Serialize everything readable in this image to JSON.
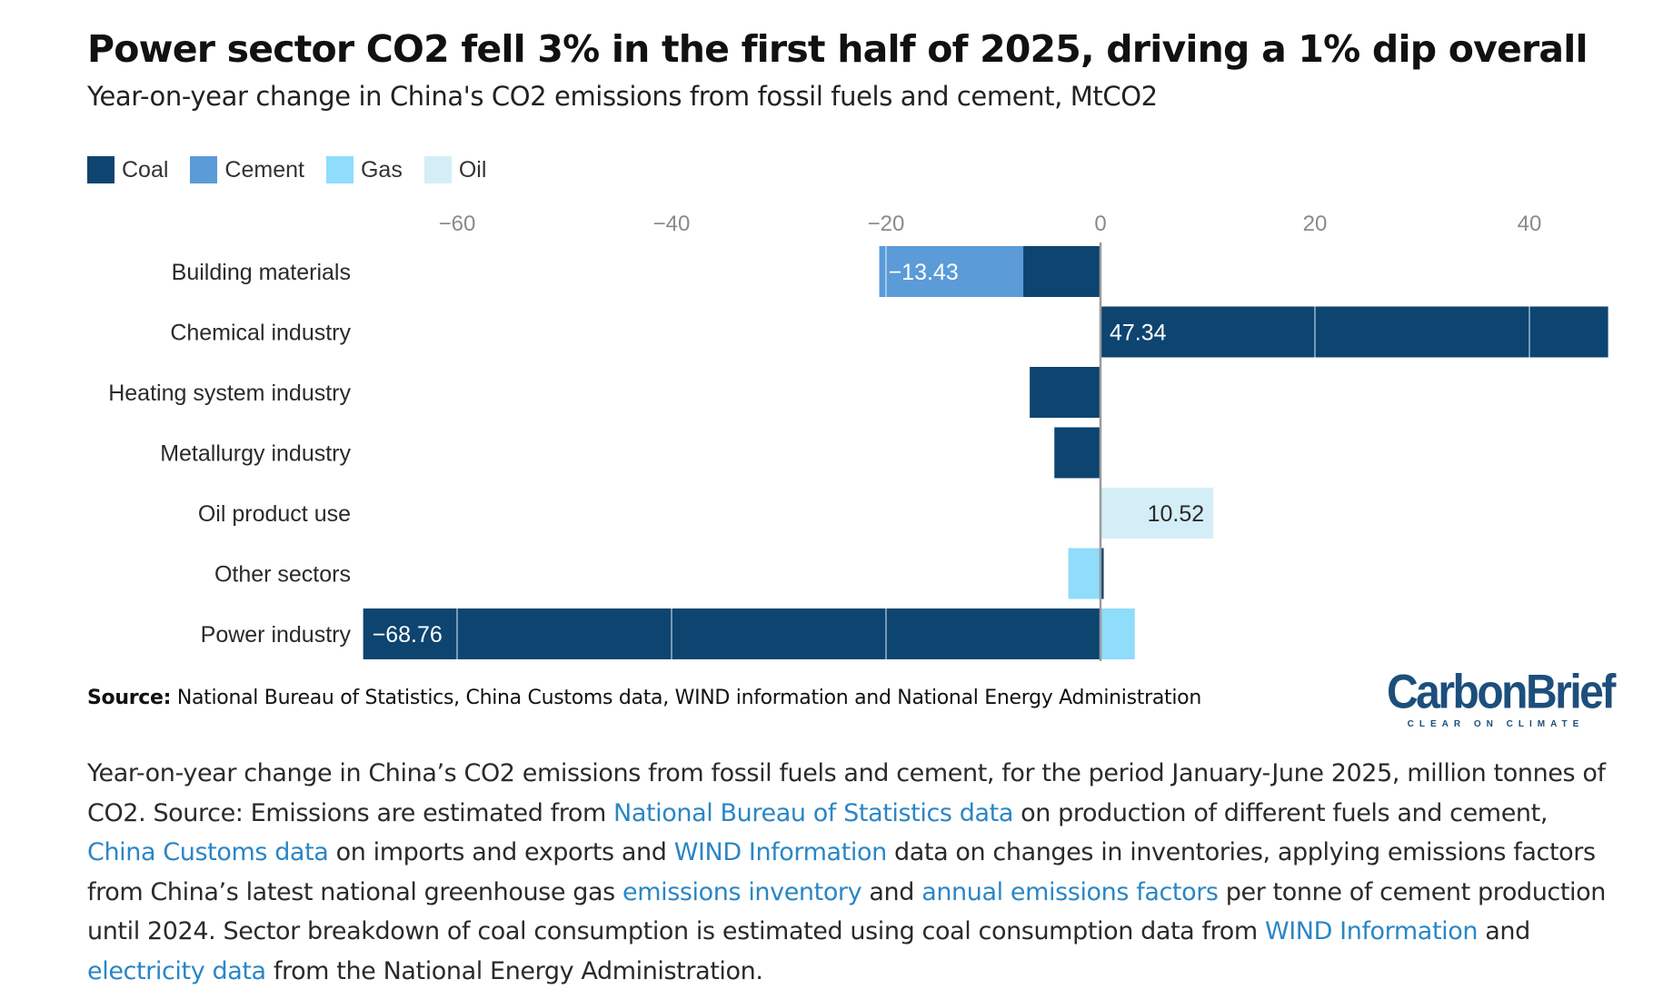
{
  "title": "Power sector CO2 fell 3% in the first half of 2025, driving a 1% dip overall",
  "subtitle": "Year-on-year change in China's CO2 emissions from fossil fuels and cement, MtCO2",
  "colors": {
    "Coal": "#0d4470",
    "Cement": "#5a9bd8",
    "Gas": "#8fdcfb",
    "Oil": "#d4eef7",
    "axis_text": "#8a8a8a",
    "label_text": "#2a2a2a"
  },
  "chart_data": {
    "type": "bar",
    "orientation": "horizontal",
    "stacked": true,
    "legend": [
      "Coal",
      "Cement",
      "Gas",
      "Oil"
    ],
    "legend_position": "top-left",
    "xlim": [
      -69,
      47.5
    ],
    "xticks": [
      -60,
      -40,
      -20,
      0,
      20,
      40
    ],
    "xtick_labels": [
      "−60",
      "−40",
      "−20",
      "0",
      "20",
      "40"
    ],
    "categories": [
      "Building materials",
      "Chemical industry",
      "Heating system industry",
      "Metallurgy industry",
      "Oil product use",
      "Other sectors",
      "Power industry"
    ],
    "series": [
      {
        "name": "Coal",
        "values": [
          -7.2,
          47.34,
          -6.6,
          -4.3,
          0,
          0.3,
          -68.76
        ]
      },
      {
        "name": "Cement",
        "values": [
          -13.43,
          0,
          0,
          0,
          0,
          0,
          0
        ]
      },
      {
        "name": "Gas",
        "values": [
          0,
          0,
          0,
          0,
          0,
          -3.0,
          3.2
        ]
      },
      {
        "name": "Oil",
        "values": [
          0,
          0,
          0,
          0,
          10.52,
          0,
          0
        ]
      }
    ],
    "data_labels": [
      {
        "category": "Building materials",
        "series": "Cement",
        "text": "−13.43"
      },
      {
        "category": "Chemical industry",
        "series": "Coal",
        "text": "47.34"
      },
      {
        "category": "Oil product use",
        "series": "Oil",
        "text": "10.52"
      },
      {
        "category": "Power industry",
        "series": "Coal",
        "text": "−68.76"
      }
    ],
    "grid": true
  },
  "source": {
    "label": "Source:",
    "text": " National Bureau of Statistics, China Customs data, WIND information and National Energy Administration"
  },
  "logo": {
    "name": "CarbonBrief",
    "tagline": "CLEAR ON CLIMATE"
  },
  "caption": {
    "t1": "Year-on-year change in China’s CO2 emissions from fossil fuels and cement, for the period January-June 2025, million tonnes of CO2. Source: Emissions are estimated from ",
    "l1": "National Bureau of Statistics data",
    "t2": " on production of different fuels and cement, ",
    "l2": "China Customs data",
    "t3": " on imports and exports and ",
    "l3": "WIND Information",
    "t4": " data on changes in inventories, applying emissions factors from China’s latest national greenhouse gas ",
    "l4": "emissions inventory",
    "t5": " and ",
    "l5": "annual emissions factors",
    "t6": " per tonne of cement production until 2024. Sector breakdown of coal consumption is estimated using coal consumption data from ",
    "l6": "WIND Information",
    "t7": " and ",
    "l7": "electricity data",
    "t8": " from the National Energy Administration."
  }
}
